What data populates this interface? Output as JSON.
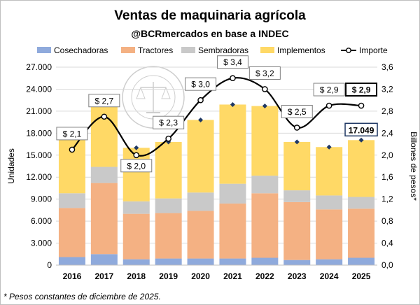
{
  "chart_data": {
    "type": "bar",
    "title": "Ventas de maquinaria agrícola",
    "subtitle": "@BCRmercados en base a INDEC",
    "categories": [
      "2016",
      "2017",
      "2018",
      "2019",
      "2020",
      "2021",
      "2022",
      "2023",
      "2024",
      "2025"
    ],
    "stacked": true,
    "ylabel": "Unidades",
    "ylim": [
      0,
      27000
    ],
    "yticks": [
      "0",
      "3.000",
      "6.000",
      "9.000",
      "12.000",
      "15.000",
      "18.000",
      "21.000",
      "24.000",
      "27.000"
    ],
    "y2label": "Billones de pesos*",
    "y2lim": [
      0,
      3.6
    ],
    "y2ticks": [
      "0,0",
      "0,4",
      "0,8",
      "1,2",
      "1,6",
      "2,0",
      "2,4",
      "2,8",
      "3,2",
      "3,6"
    ],
    "legend_position": "top",
    "grid": true,
    "series": [
      {
        "name": "Cosechadoras",
        "color": "#8faadc",
        "values": [
          1100,
          1500,
          800,
          900,
          900,
          900,
          1000,
          700,
          800,
          1000
        ]
      },
      {
        "name": "Tractores",
        "color": "#f4b183",
        "values": [
          6700,
          9700,
          6200,
          6200,
          6500,
          7500,
          8800,
          7900,
          6800,
          6700
        ]
      },
      {
        "name": "Sembradoras",
        "color": "#c9c9c9",
        "values": [
          2000,
          2200,
          1700,
          2000,
          2500,
          2700,
          2400,
          1600,
          1900,
          1600
        ]
      },
      {
        "name": "Implementos",
        "color": "#ffd966",
        "values": [
          8000,
          9400,
          7300,
          7700,
          9900,
          10800,
          9500,
          6600,
          6600,
          7749
        ]
      }
    ],
    "line_series": {
      "name": "Importe",
      "axis": "secondary",
      "color": "#000000",
      "values": [
        2.1,
        2.7,
        2.0,
        2.3,
        3.0,
        3.4,
        3.2,
        2.5,
        2.9,
        2.9
      ],
      "labels": [
        "$ 2,1",
        "$ 2,7",
        "$ 2,0",
        "$ 2,3",
        "$ 3,0",
        "$ 3,4",
        "$ 3,2",
        "$ 2,5",
        "$ 2,9",
        "$ 2,9"
      ]
    },
    "total_markers": [
      17800,
      22800,
      16000,
      16800,
      19800,
      21900,
      21700,
      16800,
      16100,
      17049
    ],
    "annotation": "17.049",
    "footnote": "* Pesos constantes de diciembre de 2025.",
    "watermark_text": "BOLSA DE COMERCIO DE ROSARIO"
  }
}
